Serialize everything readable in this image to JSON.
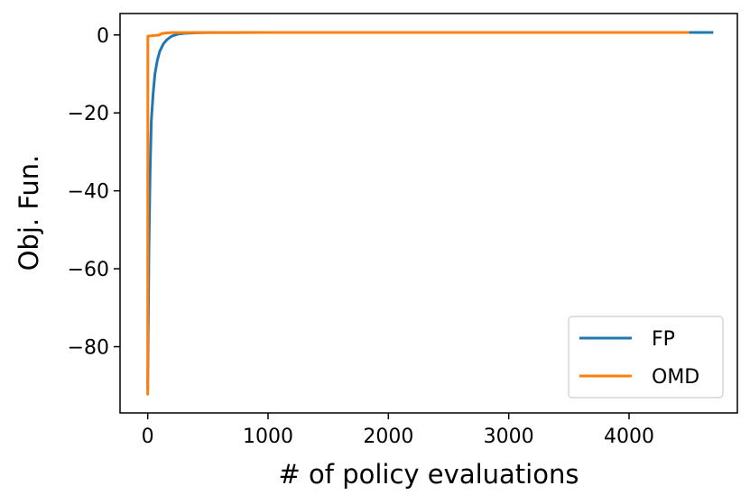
{
  "chart_data": {
    "type": "line",
    "title": "",
    "xlabel": "# of policy evaluations",
    "ylabel": "Obj. Fun.",
    "xlim": [
      -230,
      4900
    ],
    "ylim": [
      -97,
      5.5
    ],
    "xticks": [
      0,
      1000,
      2000,
      3000,
      4000
    ],
    "yticks": [
      0,
      -20,
      -40,
      -60,
      -80
    ],
    "xtick_labels": [
      "0",
      "1000",
      "2000",
      "3000",
      "4000"
    ],
    "ytick_labels": [
      "0",
      "−20",
      "−40",
      "−60",
      "−80"
    ],
    "grid": false,
    "legend_position": "lower-right",
    "series": [
      {
        "name": "FP",
        "color": "#1f77b4",
        "x": [
          0,
          10,
          20,
          30,
          45,
          60,
          80,
          100,
          130,
          160,
          200,
          250,
          300,
          400,
          500,
          700,
          1000,
          1500,
          2000,
          3000,
          4000,
          4500,
          4700
        ],
        "y": [
          -91,
          -55,
          -35,
          -22,
          -15,
          -10,
          -6.5,
          -4.2,
          -2.3,
          -1.2,
          -0.3,
          0.2,
          0.4,
          0.55,
          0.6,
          0.62,
          0.65,
          0.65,
          0.65,
          0.65,
          0.65,
          0.65,
          0.65
        ]
      },
      {
        "name": "OMD",
        "color": "#ff7f0e",
        "x": [
          0,
          1,
          5,
          100,
          110,
          150,
          200,
          300,
          1000,
          2000,
          3000,
          4000,
          4500
        ],
        "y": [
          -92.5,
          -0.3,
          -0.3,
          0.0,
          0.3,
          0.5,
          0.6,
          0.62,
          0.65,
          0.65,
          0.65,
          0.65,
          0.65
        ]
      }
    ]
  }
}
